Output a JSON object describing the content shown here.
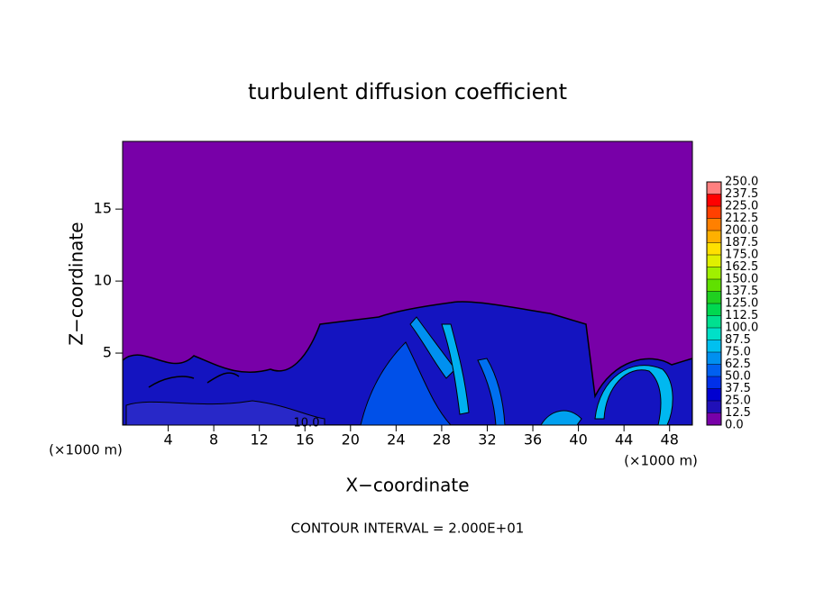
{
  "chart_data": {
    "type": "contour",
    "title": "turbulent diffusion coefficient",
    "xlabel": "X−coordinate",
    "ylabel": "Z−coordinate",
    "x_unit": "(×1000 m)",
    "note": "CONTOUR INTERVAL = 2.000E+01",
    "contour_label": "10.0",
    "xlim": [
      0,
      50
    ],
    "ylim": [
      0,
      19.7
    ],
    "xticks": [
      4,
      8,
      12,
      16,
      20,
      24,
      28,
      32,
      36,
      40,
      44,
      48
    ],
    "yticks": [
      5,
      10,
      15
    ],
    "colorbar": {
      "levels": [
        {
          "value": 0,
          "label": "0.0"
        },
        {
          "value": 12.5,
          "label": "12.5"
        },
        {
          "value": 25,
          "label": "25.0"
        },
        {
          "value": 37.5,
          "label": "37.5"
        },
        {
          "value": 50,
          "label": "50.0"
        },
        {
          "value": 62.5,
          "label": "62.5"
        },
        {
          "value": 75,
          "label": "75.0"
        },
        {
          "value": 87.5,
          "label": "87.5"
        },
        {
          "value": 100,
          "label": "100.0"
        },
        {
          "value": 112.5,
          "label": "112.5"
        },
        {
          "value": 125,
          "label": "125.0"
        },
        {
          "value": 137.5,
          "label": "137.5"
        },
        {
          "value": 150,
          "label": "150.0"
        },
        {
          "value": 162.5,
          "label": "162.5"
        },
        {
          "value": 175,
          "label": "175.0"
        },
        {
          "value": 187.5,
          "label": "187.5"
        },
        {
          "value": 200,
          "label": "200.0"
        },
        {
          "value": 212.5,
          "label": "212.5"
        },
        {
          "value": 225,
          "label": "225.0"
        },
        {
          "value": 237.5,
          "label": "237.5"
        },
        {
          "value": 250,
          "label": "250.0"
        }
      ],
      "colors": [
        "#7800a8",
        "#2010b8",
        "#0000d0",
        "#0030e8",
        "#0060f0",
        "#0090f0",
        "#00c0f0",
        "#00e0c8",
        "#00e090",
        "#00d850",
        "#20d020",
        "#60e000",
        "#a0f000",
        "#e0f000",
        "#ffe000",
        "#ffb000",
        "#ff8000",
        "#ff4000",
        "#ff0000",
        "#ff8080"
      ]
    }
  }
}
